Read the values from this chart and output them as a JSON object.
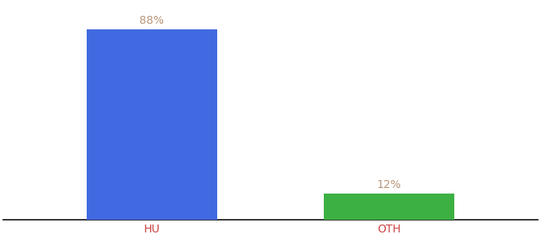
{
  "categories": [
    "HU",
    "OTH"
  ],
  "values": [
    88,
    12
  ],
  "bar_colors": [
    "#4169e1",
    "#3cb043"
  ],
  "label_texts": [
    "88%",
    "12%"
  ],
  "label_color": "#b8967a",
  "xlabel_color": "#cc4444",
  "background_color": "#ffffff",
  "bar_positions": [
    0.25,
    0.65
  ],
  "xlim": [
    0.0,
    0.9
  ],
  "ylim": [
    0,
    100
  ],
  "bar_width": 0.22,
  "label_fontsize": 10,
  "xlabel_fontsize": 10
}
